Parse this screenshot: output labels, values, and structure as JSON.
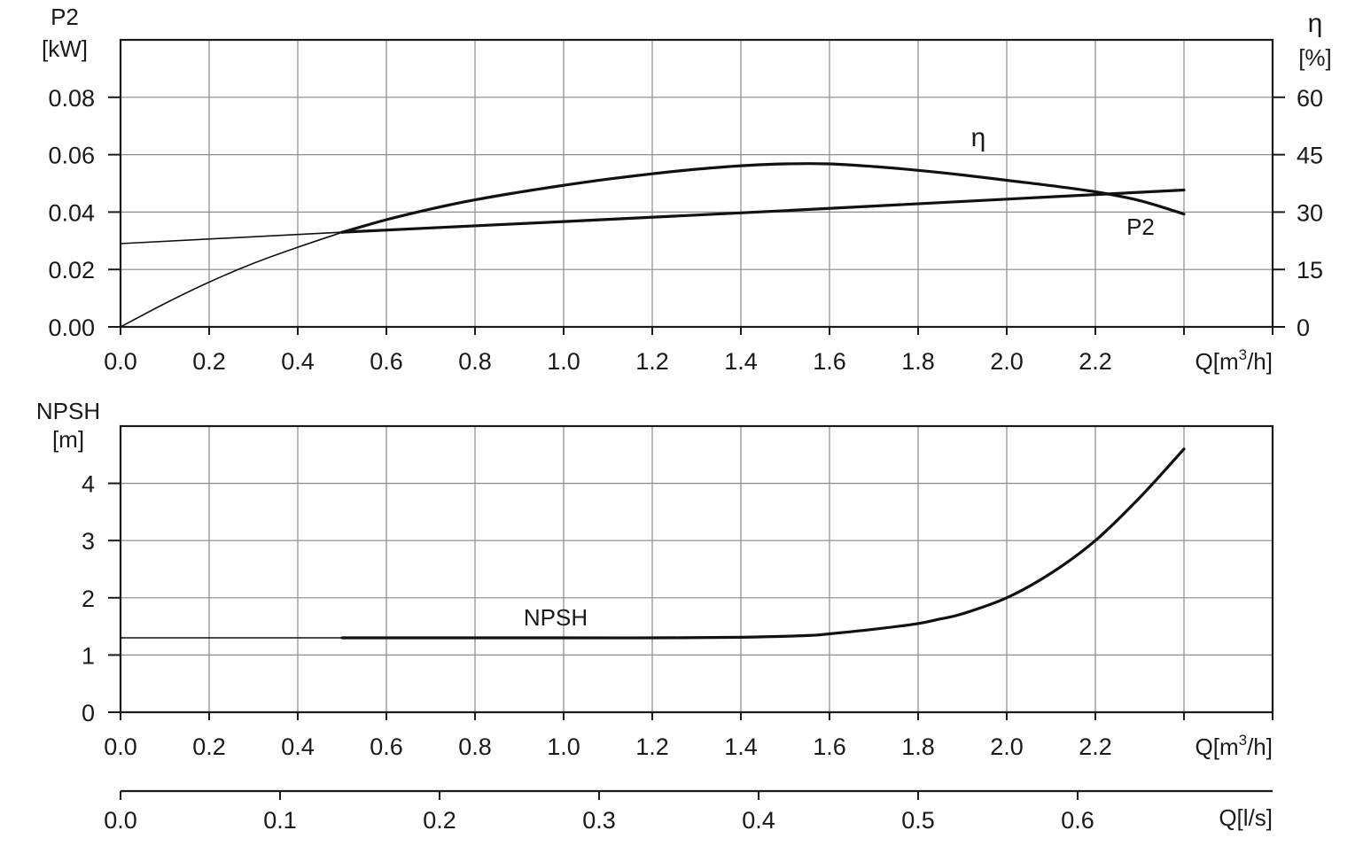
{
  "chart_data": [
    {
      "type": "line",
      "x_axis": {
        "label_prefix": "Q[m",
        "label_sup": "3",
        "label_suffix": "/h]",
        "ticks": [
          "0.0",
          "0.2",
          "0.4",
          "0.6",
          "0.8",
          "1.0",
          "1.2",
          "1.4",
          "1.6",
          "1.8",
          "2.0",
          "2.2"
        ],
        "range": [
          0,
          2.6
        ]
      },
      "y_axis_left": {
        "label_lines": [
          "P2",
          "[kW]"
        ],
        "ticks": [
          "0.00",
          "0.02",
          "0.04",
          "0.06",
          "0.08"
        ],
        "range": [
          0,
          0.1
        ]
      },
      "y_axis_right": {
        "symbol": "η",
        "unit": "[%]",
        "ticks": [
          "0",
          "15",
          "30",
          "45",
          "60"
        ],
        "range": [
          0,
          75
        ]
      },
      "grid": true,
      "series": [
        {
          "name": "η",
          "axis": "right",
          "x": [
            0.0,
            0.1,
            0.2,
            0.3,
            0.4,
            0.5,
            0.6,
            0.7,
            0.8,
            0.9,
            1.0,
            1.1,
            1.2,
            1.3,
            1.4,
            1.5,
            1.6,
            1.7,
            1.8,
            1.9,
            2.0,
            2.1,
            2.2,
            2.3,
            2.4
          ],
          "y": [
            0,
            6.1,
            11.7,
            16.6,
            20.8,
            24.7,
            28.0,
            30.8,
            33.2,
            35.2,
            37.0,
            38.6,
            40.0,
            41.2,
            42.1,
            42.6,
            42.6,
            41.9,
            40.9,
            39.7,
            38.3,
            36.9,
            35.3,
            33.0,
            29.5
          ]
        },
        {
          "name": "P2",
          "axis": "left",
          "x": [
            0.0,
            0.5,
            1.0,
            1.5,
            2.0,
            2.4
          ],
          "y": [
            0.029,
            0.033,
            0.0367,
            0.0405,
            0.0445,
            0.0477
          ]
        }
      ]
    },
    {
      "type": "line",
      "x_axis": {
        "label_prefix": "Q[m",
        "label_sup": "3",
        "label_suffix": "/h]",
        "ticks": [
          "0.0",
          "0.2",
          "0.4",
          "0.6",
          "0.8",
          "1.0",
          "1.2",
          "1.4",
          "1.6",
          "1.8",
          "2.0",
          "2.2"
        ],
        "range": [
          0,
          2.6
        ]
      },
      "x_axis_secondary": {
        "label": "Q[l/s]",
        "ticks": [
          "0.0",
          "0.1",
          "0.2",
          "0.3",
          "0.4",
          "0.5",
          "0.6"
        ],
        "range": [
          0,
          0.7222
        ]
      },
      "y_axis_left": {
        "label_lines": [
          "NPSH",
          "[m]"
        ],
        "ticks": [
          "0",
          "1",
          "2",
          "3",
          "4"
        ],
        "range": [
          0,
          5
        ]
      },
      "grid": true,
      "series": [
        {
          "name": "NPSH",
          "axis": "left",
          "x": [
            0.0,
            0.5,
            1.0,
            1.2,
            1.4,
            1.55,
            1.6,
            1.7,
            1.8,
            1.85,
            1.9,
            2.0,
            2.1,
            2.2,
            2.3,
            2.4
          ],
          "y": [
            1.3,
            1.3,
            1.3,
            1.3,
            1.31,
            1.34,
            1.37,
            1.45,
            1.55,
            1.63,
            1.72,
            2.0,
            2.43,
            3.0,
            3.75,
            4.6
          ]
        }
      ]
    }
  ]
}
